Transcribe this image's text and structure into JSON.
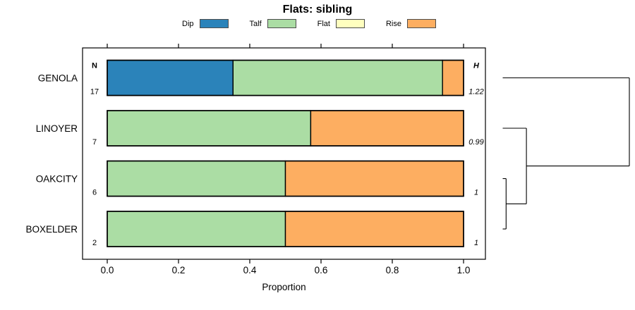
{
  "title": "Flats: sibling",
  "legend": {
    "items": [
      {
        "label": "Dip",
        "color": "#2B83BA"
      },
      {
        "label": "Talf",
        "color": "#ABDDA4"
      },
      {
        "label": "Flat",
        "color": "#FFFFBF"
      },
      {
        "label": "Rise",
        "color": "#FDAE61"
      }
    ]
  },
  "chart_data": {
    "type": "bar",
    "orientation": "horizontal",
    "stacked": true,
    "title": "Flats: sibling",
    "xlabel": "Proportion",
    "xlim": [
      0,
      1
    ],
    "grid": false,
    "legend_position": "top",
    "xticks": [
      {
        "value": 0.0,
        "label": "0.0"
      },
      {
        "value": 0.2,
        "label": "0.2"
      },
      {
        "value": 0.4,
        "label": "0.4"
      },
      {
        "value": 0.6,
        "label": "0.6"
      },
      {
        "value": 0.8,
        "label": "0.8"
      },
      {
        "value": 1.0,
        "label": "1.0"
      }
    ],
    "columns": {
      "n_header": "N",
      "h_header": "H"
    },
    "rows": [
      {
        "label": "GENOLA",
        "n": "17",
        "h": "1.22",
        "segments": [
          {
            "category": "Dip",
            "value": 0.353
          },
          {
            "category": "Talf",
            "value": 0.588
          },
          {
            "category": "Flat",
            "value": 0
          },
          {
            "category": "Rise",
            "value": 0.059
          }
        ]
      },
      {
        "label": "LINOYER",
        "n": "7",
        "h": "0.99",
        "segments": [
          {
            "category": "Dip",
            "value": 0
          },
          {
            "category": "Talf",
            "value": 0.571
          },
          {
            "category": "Flat",
            "value": 0
          },
          {
            "category": "Rise",
            "value": 0.429
          }
        ]
      },
      {
        "label": "OAKCITY",
        "n": "6",
        "h": "1",
        "segments": [
          {
            "category": "Dip",
            "value": 0
          },
          {
            "category": "Talf",
            "value": 0.5
          },
          {
            "category": "Flat",
            "value": 0
          },
          {
            "category": "Rise",
            "value": 0.5
          }
        ]
      },
      {
        "label": "BOXELDER",
        "n": "2",
        "h": "1",
        "segments": [
          {
            "category": "Dip",
            "value": 0
          },
          {
            "category": "Talf",
            "value": 0.5
          },
          {
            "category": "Flat",
            "value": 0
          },
          {
            "category": "Rise",
            "value": 0.5
          }
        ]
      }
    ],
    "dendrogram": {
      "leaf_order": [
        "GENOLA",
        "LINOYER",
        "OAKCITY",
        "BOXELDER"
      ],
      "merges": [
        {
          "children": [
            "OAKCITY",
            "BOXELDER"
          ],
          "height": 0.027
        },
        {
          "children": [
            "LINOYER",
            "@0"
          ],
          "height": 0.187
        },
        {
          "children": [
            "GENOLA",
            "@1"
          ],
          "height": 1.0
        }
      ]
    }
  }
}
